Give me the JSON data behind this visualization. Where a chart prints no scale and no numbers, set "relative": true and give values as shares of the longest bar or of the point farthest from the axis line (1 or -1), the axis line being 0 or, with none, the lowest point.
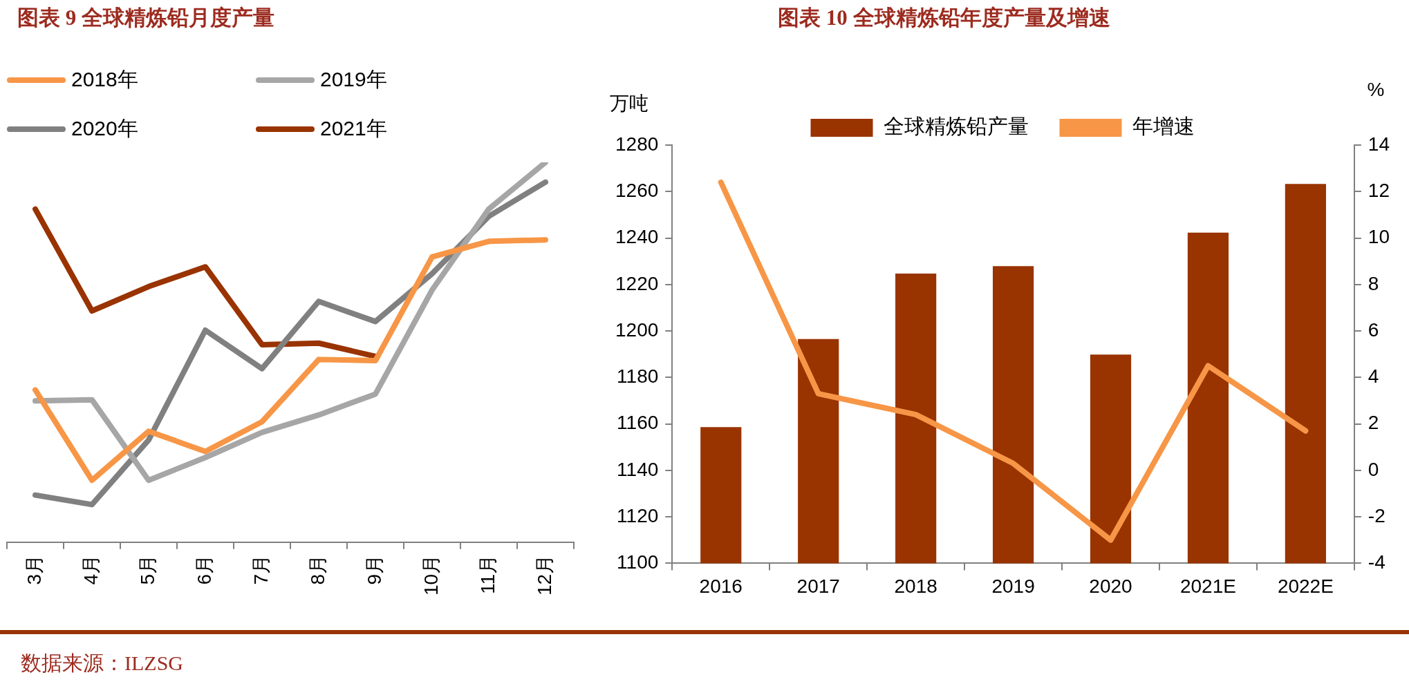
{
  "chart_data": [
    {
      "type": "line",
      "title": "图表 9  全球精炼铅月度产量",
      "relative": true,
      "legend": "top left",
      "categories": [
        "3月",
        "4月",
        "5月",
        "6月",
        "7月",
        "8月",
        "9月",
        "10月",
        "11月",
        "12月"
      ],
      "series": [
        {
          "name": "2018年",
          "color": "#f79646",
          "values": [
            0.401,
            0.163,
            0.292,
            0.239,
            0.317,
            0.481,
            0.478,
            0.751,
            0.792,
            0.796
          ]
        },
        {
          "name": "2019年",
          "color": "#a6a6a6",
          "values": [
            0.372,
            0.375,
            0.163,
            0.223,
            0.289,
            0.335,
            0.39,
            0.664,
            0.877,
            1
          ]
        },
        {
          "name": "2020年",
          "color": "#808080",
          "values": [
            0.124,
            0.099,
            0.269,
            0.558,
            0.457,
            0.634,
            0.581,
            0.707,
            0.858,
            0.948
          ]
        },
        {
          "name": "2021年",
          "color": "#993300",
          "values": [
            0.877,
            0.609,
            0.673,
            0.725,
            0.52,
            0.524,
            0.489,
            null,
            null,
            null
          ]
        }
      ],
      "annotations": [
        "数据来源：ILZSG"
      ]
    },
    {
      "type": "bar",
      "title": "图表 10  全球精炼铅年度产量及增速",
      "ylabel": "万吨",
      "y2label": "%",
      "legend": "top",
      "categories": [
        "2016",
        "2017",
        "2018",
        "2019",
        "2020",
        "2021E",
        "2022E"
      ],
      "series": [
        {
          "name": "全球精炼铅产量",
          "type": "bar",
          "color": "#993300",
          "values": [
            1158.6,
            1196.5,
            1224.7,
            1227.9,
            1189.8,
            1242.3,
            1263.3
          ]
        },
        {
          "name": "年增速",
          "type": "line",
          "axis": "y2",
          "color": "#f79646",
          "values": [
            12.4,
            3.3,
            2.4,
            0.3,
            -3.0,
            4.5,
            1.7
          ]
        }
      ],
      "ylim": [
        1100,
        1280
      ],
      "yticks": [
        1100,
        1120,
        1140,
        1160,
        1180,
        1200,
        1220,
        1240,
        1260,
        1280
      ],
      "y2lim": [
        -4,
        14
      ],
      "y2ticks": [
        -4,
        -2,
        0,
        2,
        4,
        6,
        8,
        10,
        12,
        14
      ]
    }
  ]
}
